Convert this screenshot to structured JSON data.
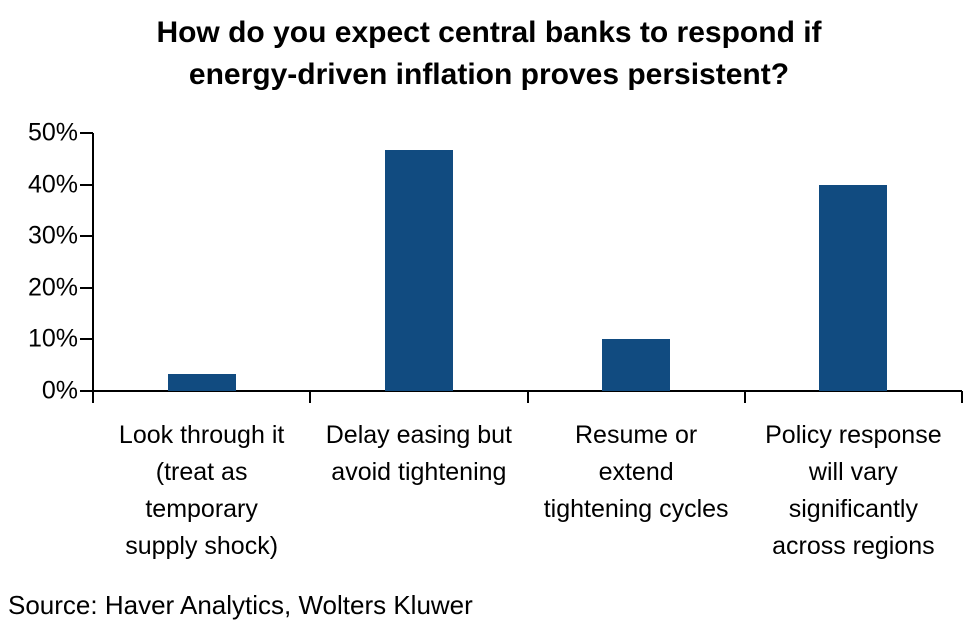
{
  "title": "How do you expect central banks to respond if energy-driven inflation proves persistent?",
  "title_lines": [
    "How do you expect central banks to respond if",
    "energy-driven inflation proves persistent?"
  ],
  "source": "Source: Haver Analytics, Wolters Kluwer",
  "colors": {
    "bar": "#114B80",
    "axis": "#000000",
    "text": "#000000",
    "background": "#FFFFFF"
  },
  "chart_data": {
    "type": "bar",
    "title": "How do you expect central banks to respond if energy-driven inflation proves persistent?",
    "categories": [
      "Look through it (treat as temporary supply shock)",
      "Delay easing but avoid tightening",
      "Resume or extend tightening cycles",
      "Policy response will vary significantly across regions"
    ],
    "category_lines": [
      [
        "Look through it",
        "(treat as",
        "temporary",
        "supply shock)"
      ],
      [
        "Delay easing but",
        "avoid tightening"
      ],
      [
        "Resume or",
        "extend",
        "tightening cycles"
      ],
      [
        "Policy response",
        "will vary",
        "significantly",
        "across regions"
      ]
    ],
    "values": [
      3.3,
      46.7,
      10,
      40
    ],
    "unit": "%",
    "xlabel": "",
    "ylabel": "",
    "ylim": [
      0,
      50
    ],
    "ytick_step": 10,
    "ytick_labels": [
      "0%",
      "10%",
      "20%",
      "30%",
      "40%",
      "50%"
    ],
    "grid": false,
    "legend": false,
    "bar_color": "#114B80",
    "source": "Source: Haver Analytics, Wolters Kluwer"
  }
}
